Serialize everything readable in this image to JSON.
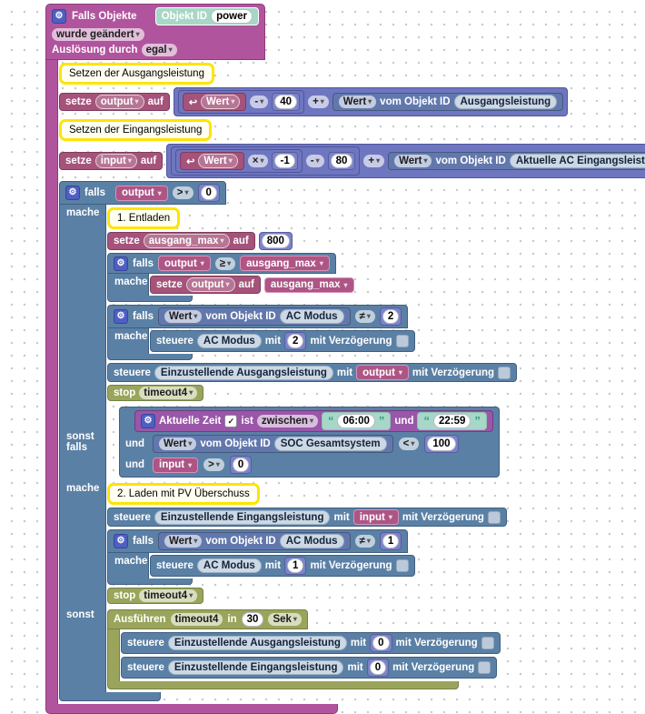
{
  "icons": {
    "gear": "⚙",
    "update_arrow": "↩",
    "check": "✓",
    "dropdown_arrow": "▾",
    "quote_open": "“",
    "quote_close": "”"
  },
  "colors": {
    "trigger_pink": "#b1549e",
    "variable_rose": "#a5537a",
    "logic_blue": "#5b80a5",
    "math_indigo": "#6f76c0",
    "value_slate": "#6278ad",
    "time_purple": "#9a56a8",
    "timeout_olive": "#9aa55b",
    "string_teal": "#a7d7c7",
    "comment_yellow": "#ffe400"
  },
  "terms": {
    "setze": "setze",
    "auf": "auf",
    "falls": "falls",
    "mache": "mache",
    "sonst_falls": "sonst falls",
    "sonst": "sonst",
    "und": "und",
    "steuere": "steuere",
    "mit": "mit",
    "mit_verzoegerung": "mit Verzögerung",
    "wert": "Wert",
    "vom_objekt_id": "vom Objekt ID",
    "stop": "stop",
    "ist": "ist",
    "in": "in"
  },
  "trigger": {
    "title": "Falls Objekte",
    "objekt_id_label": "Objekt ID",
    "objekt_id_value": "power",
    "changed": "wurde geändert",
    "trigger_by_label": "Auslösung durch",
    "trigger_by_value": "egal"
  },
  "comments": {
    "set_output": "Setzen der Ausgangsleistung",
    "set_input": "Setzen der Eingangsleistung",
    "discharge": "1. Entladen",
    "charge": "2. Laden mit PV Überschuss"
  },
  "set_output": {
    "var": "output",
    "op_minus": "-",
    "num": "40",
    "op_plus": "+",
    "source_object": "Ausgangsleistung"
  },
  "set_input": {
    "var": "input",
    "op_times": "×",
    "num_factor": "-1",
    "op_minus": "-",
    "num_offset": "80",
    "op_plus": "+",
    "source_object": "Aktuelle AC Eingangsleistung"
  },
  "main_if": {
    "cond_var": "output",
    "cond_op": ">",
    "cond_num": "0"
  },
  "set_max": {
    "var": "ausgang_max",
    "num": "800"
  },
  "if_limit": {
    "cond_var": "output",
    "cond_op": "≥",
    "cond_var2": "ausgang_max",
    "set_var": "output",
    "set_value": "ausgang_max"
  },
  "if_mode2": {
    "object": "AC Modus",
    "op": "≠",
    "num": "2",
    "set_object": "AC Modus",
    "set_num": "2"
  },
  "ctrl_output": {
    "object": "Einzustellende Ausgangsleistung",
    "value_var": "output"
  },
  "stop1": {
    "name": "timeout4"
  },
  "time_cond": {
    "label": "Aktuelle Zeit",
    "mode": "zwischen",
    "from": "06:00",
    "to": "22:59"
  },
  "soc_cond": {
    "object": "SOC Gesamtsystem",
    "op": "<",
    "num": "100"
  },
  "input_cond": {
    "var": "input",
    "op": ">",
    "num": "0"
  },
  "ctrl_input": {
    "object": "Einzustellende Eingangsleistung",
    "value_var": "input"
  },
  "if_mode1": {
    "object": "AC Modus",
    "op": "≠",
    "num": "1",
    "set_object": "AC Modus",
    "set_num": "1"
  },
  "stop2": {
    "name": "timeout4"
  },
  "timeout": {
    "action": "Ausführen",
    "name": "timeout4",
    "delay": "30",
    "unit": "Sek"
  },
  "ctrl_output0": {
    "object": "Einzustellende Ausgangsleistung",
    "num": "0"
  },
  "ctrl_input0": {
    "object": "Einzustellende Eingangsleistung",
    "num": "0"
  }
}
